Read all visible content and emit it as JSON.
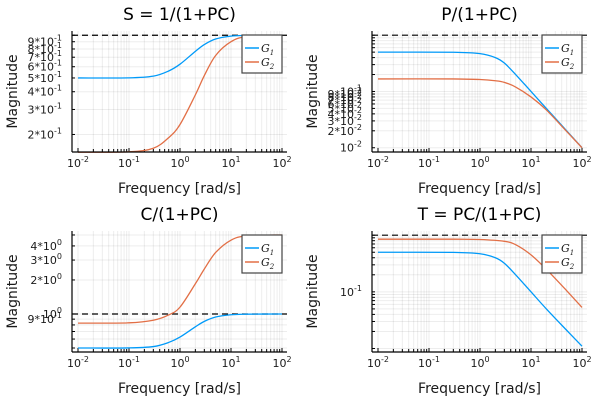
{
  "chart_data": [
    {
      "id": "S",
      "type": "line",
      "title": "S = 1/(1+PC)",
      "xlabel": "Frequency [rad/s]",
      "ylabel": "Magnitude",
      "xscale": "log",
      "yscale": "log",
      "xlim": [
        0.01,
        100
      ],
      "ylim": [
        0.158,
        1.02
      ],
      "xticks": [
        {
          "v": 0.01,
          "base": "10",
          "exp": "-2"
        },
        {
          "v": 0.1,
          "base": "10",
          "exp": "-1"
        },
        {
          "v": 1,
          "base": "10",
          "exp": "0"
        },
        {
          "v": 10,
          "base": "10",
          "exp": "1"
        },
        {
          "v": 100,
          "base": "10",
          "exp": "2"
        }
      ],
      "yticks": [
        {
          "v": 0.2,
          "base": "2*10",
          "exp": "-1"
        },
        {
          "v": 0.3,
          "base": "3*10",
          "exp": "-1"
        },
        {
          "v": 0.4,
          "base": "4*10",
          "exp": "-1"
        },
        {
          "v": 0.5,
          "base": "5*10",
          "exp": "-1"
        },
        {
          "v": 0.6,
          "base": "6*10",
          "exp": "-1"
        },
        {
          "v": 0.7,
          "base": "7*10",
          "exp": "-1"
        },
        {
          "v": 0.8,
          "base": "8*10",
          "exp": "-1"
        },
        {
          "v": 0.9,
          "base": "9*10",
          "exp": "-1"
        }
      ],
      "hline": 1.0,
      "grid": true,
      "legend": "top-right",
      "series": [
        {
          "name": "G1",
          "sub": "1",
          "color": "#009af9",
          "points": [
            [
              0.01,
              0.5
            ],
            [
              0.1,
              0.501
            ],
            [
              0.3,
              0.515
            ],
            [
              0.6,
              0.56
            ],
            [
              1,
              0.625
            ],
            [
              2,
              0.77
            ],
            [
              3,
              0.86
            ],
            [
              5,
              0.94
            ],
            [
              10,
              0.985
            ],
            [
              20,
              0.996
            ],
            [
              100,
              1.0
            ]
          ]
        },
        {
          "name": "G2",
          "sub": "2",
          "color": "#e26f46",
          "points": [
            [
              0.01,
              0.15
            ],
            [
              0.1,
              0.151
            ],
            [
              0.3,
              0.16
            ],
            [
              0.6,
              0.19
            ],
            [
              1,
              0.235
            ],
            [
              2,
              0.38
            ],
            [
              3,
              0.52
            ],
            [
              5,
              0.72
            ],
            [
              10,
              0.9
            ],
            [
              20,
              0.975
            ],
            [
              100,
              1.0
            ]
          ]
        }
      ]
    },
    {
      "id": "PS",
      "type": "line",
      "title": "P/(1+PC)",
      "xlabel": "Frequency [rad/s]",
      "ylabel": "Magnitude",
      "xscale": "log",
      "yscale": "log",
      "xlim": [
        0.01,
        100
      ],
      "ylim": [
        0.0095,
        1.05
      ],
      "xticks": [
        {
          "v": 0.01,
          "base": "10",
          "exp": "-2"
        },
        {
          "v": 0.1,
          "base": "10",
          "exp": "-1"
        },
        {
          "v": 1,
          "base": "10",
          "exp": "0"
        },
        {
          "v": 10,
          "base": "10",
          "exp": "1"
        },
        {
          "v": 100,
          "base": "10",
          "exp": "2"
        }
      ],
      "yticks": [
        {
          "v": 0.01,
          "base": "10",
          "exp": "-2"
        },
        {
          "v": 0.02,
          "base": "2*10",
          "exp": "-2"
        },
        {
          "v": 0.03,
          "base": "3*10",
          "exp": "-2"
        },
        {
          "v": 0.04,
          "base": "4*10",
          "exp": "-2"
        },
        {
          "v": 0.05,
          "base": "5*10",
          "exp": "-2"
        },
        {
          "v": 0.06,
          "base": "6*10",
          "exp": "-2"
        },
        {
          "v": 0.07,
          "base": "7*10",
          "exp": "-2"
        },
        {
          "v": 0.08,
          "base": "8*10",
          "exp": "-2"
        },
        {
          "v": 0.09,
          "base": "9*10",
          "exp": "-2"
        },
        {
          "v": 0.1,
          "base": "10",
          "exp": "-1"
        }
      ],
      "hline": 1.0,
      "grid": true,
      "legend": "top-right",
      "series": [
        {
          "name": "G1",
          "sub": "1",
          "color": "#009af9",
          "points": [
            [
              0.01,
              0.5
            ],
            [
              0.3,
              0.498
            ],
            [
              1,
              0.47
            ],
            [
              2,
              0.4
            ],
            [
              3,
              0.32
            ],
            [
              5,
              0.2
            ],
            [
              10,
              0.1
            ],
            [
              20,
              0.05
            ],
            [
              50,
              0.02
            ],
            [
              100,
              0.01
            ]
          ]
        },
        {
          "name": "G2",
          "sub": "2",
          "color": "#e26f46",
          "points": [
            [
              0.01,
              0.167
            ],
            [
              0.3,
              0.167
            ],
            [
              1,
              0.163
            ],
            [
              2,
              0.155
            ],
            [
              3,
              0.145
            ],
            [
              5,
              0.12
            ],
            [
              10,
              0.08
            ],
            [
              20,
              0.047
            ],
            [
              50,
              0.0195
            ],
            [
              100,
              0.01
            ]
          ]
        }
      ]
    },
    {
      "id": "CS",
      "type": "line",
      "title": "C/(1+PC)",
      "xlabel": "Frequency [rad/s]",
      "ylabel": "Magnitude",
      "xscale": "log",
      "yscale": "log",
      "xlim": [
        0.01,
        100
      ],
      "ylim": [
        0.49,
        5.1
      ],
      "xticks": [
        {
          "v": 0.01,
          "base": "10",
          "exp": "-2"
        },
        {
          "v": 0.1,
          "base": "10",
          "exp": "-1"
        },
        {
          "v": 1,
          "base": "10",
          "exp": "0"
        },
        {
          "v": 10,
          "base": "10",
          "exp": "1"
        },
        {
          "v": 100,
          "base": "10",
          "exp": "2"
        }
      ],
      "yticks": [
        {
          "v": 0.9,
          "base": "9*10",
          "exp": "-1"
        },
        {
          "v": 1,
          "base": "10",
          "exp": "0"
        },
        {
          "v": 2,
          "base": "2*10",
          "exp": "0"
        },
        {
          "v": 3,
          "base": "3*10",
          "exp": "0"
        },
        {
          "v": 4,
          "base": "4*10",
          "exp": "0"
        }
      ],
      "hline": 1.0,
      "grid": true,
      "legend": "top-right",
      "series": [
        {
          "name": "G1",
          "sub": "1",
          "color": "#009af9",
          "points": [
            [
              0.01,
              0.5
            ],
            [
              0.1,
              0.501
            ],
            [
              0.3,
              0.515
            ],
            [
              0.6,
              0.56
            ],
            [
              1,
              0.625
            ],
            [
              2,
              0.77
            ],
            [
              3,
              0.86
            ],
            [
              5,
              0.94
            ],
            [
              10,
              0.985
            ],
            [
              20,
              0.996
            ],
            [
              100,
              1.0
            ]
          ]
        },
        {
          "name": "G2",
          "sub": "2",
          "color": "#e26f46",
          "points": [
            [
              0.01,
              0.83
            ],
            [
              0.1,
              0.835
            ],
            [
              0.3,
              0.88
            ],
            [
              0.6,
              0.98
            ],
            [
              1,
              1.15
            ],
            [
              2,
              1.85
            ],
            [
              3,
              2.5
            ],
            [
              5,
              3.5
            ],
            [
              10,
              4.5
            ],
            [
              20,
              4.9
            ],
            [
              100,
              5.0
            ]
          ]
        }
      ]
    },
    {
      "id": "T",
      "type": "line",
      "title": "T = PC/(1+PC)",
      "xlabel": "Frequency [rad/s]",
      "ylabel": "Magnitude",
      "xscale": "log",
      "yscale": "log",
      "xlim": [
        0.01,
        100
      ],
      "ylim": [
        0.0098,
        1.05
      ],
      "xticks": [
        {
          "v": 0.01,
          "base": "10",
          "exp": "-2"
        },
        {
          "v": 0.1,
          "base": "10",
          "exp": "-1"
        },
        {
          "v": 1,
          "base": "10",
          "exp": "0"
        },
        {
          "v": 10,
          "base": "10",
          "exp": "1"
        },
        {
          "v": 100,
          "base": "10",
          "exp": "2"
        }
      ],
      "yticks": [
        {
          "v": 0.1,
          "base": "10",
          "exp": "-1"
        }
      ],
      "hline": 1.0,
      "grid": true,
      "legend": "top-right",
      "series": [
        {
          "name": "G1",
          "sub": "1",
          "color": "#009af9",
          "points": [
            [
              0.01,
              0.5
            ],
            [
              0.3,
              0.498
            ],
            [
              1,
              0.47
            ],
            [
              2,
              0.4
            ],
            [
              3,
              0.32
            ],
            [
              5,
              0.2
            ],
            [
              10,
              0.1
            ],
            [
              20,
              0.05
            ],
            [
              50,
              0.021
            ],
            [
              100,
              0.011
            ]
          ]
        },
        {
          "name": "G2",
          "sub": "2",
          "color": "#e26f46",
          "points": [
            [
              0.01,
              0.85
            ],
            [
              0.3,
              0.85
            ],
            [
              1,
              0.84
            ],
            [
              3,
              0.78
            ],
            [
              5,
              0.68
            ],
            [
              10,
              0.45
            ],
            [
              20,
              0.25
            ],
            [
              50,
              0.105
            ],
            [
              100,
              0.053
            ]
          ]
        }
      ]
    }
  ]
}
